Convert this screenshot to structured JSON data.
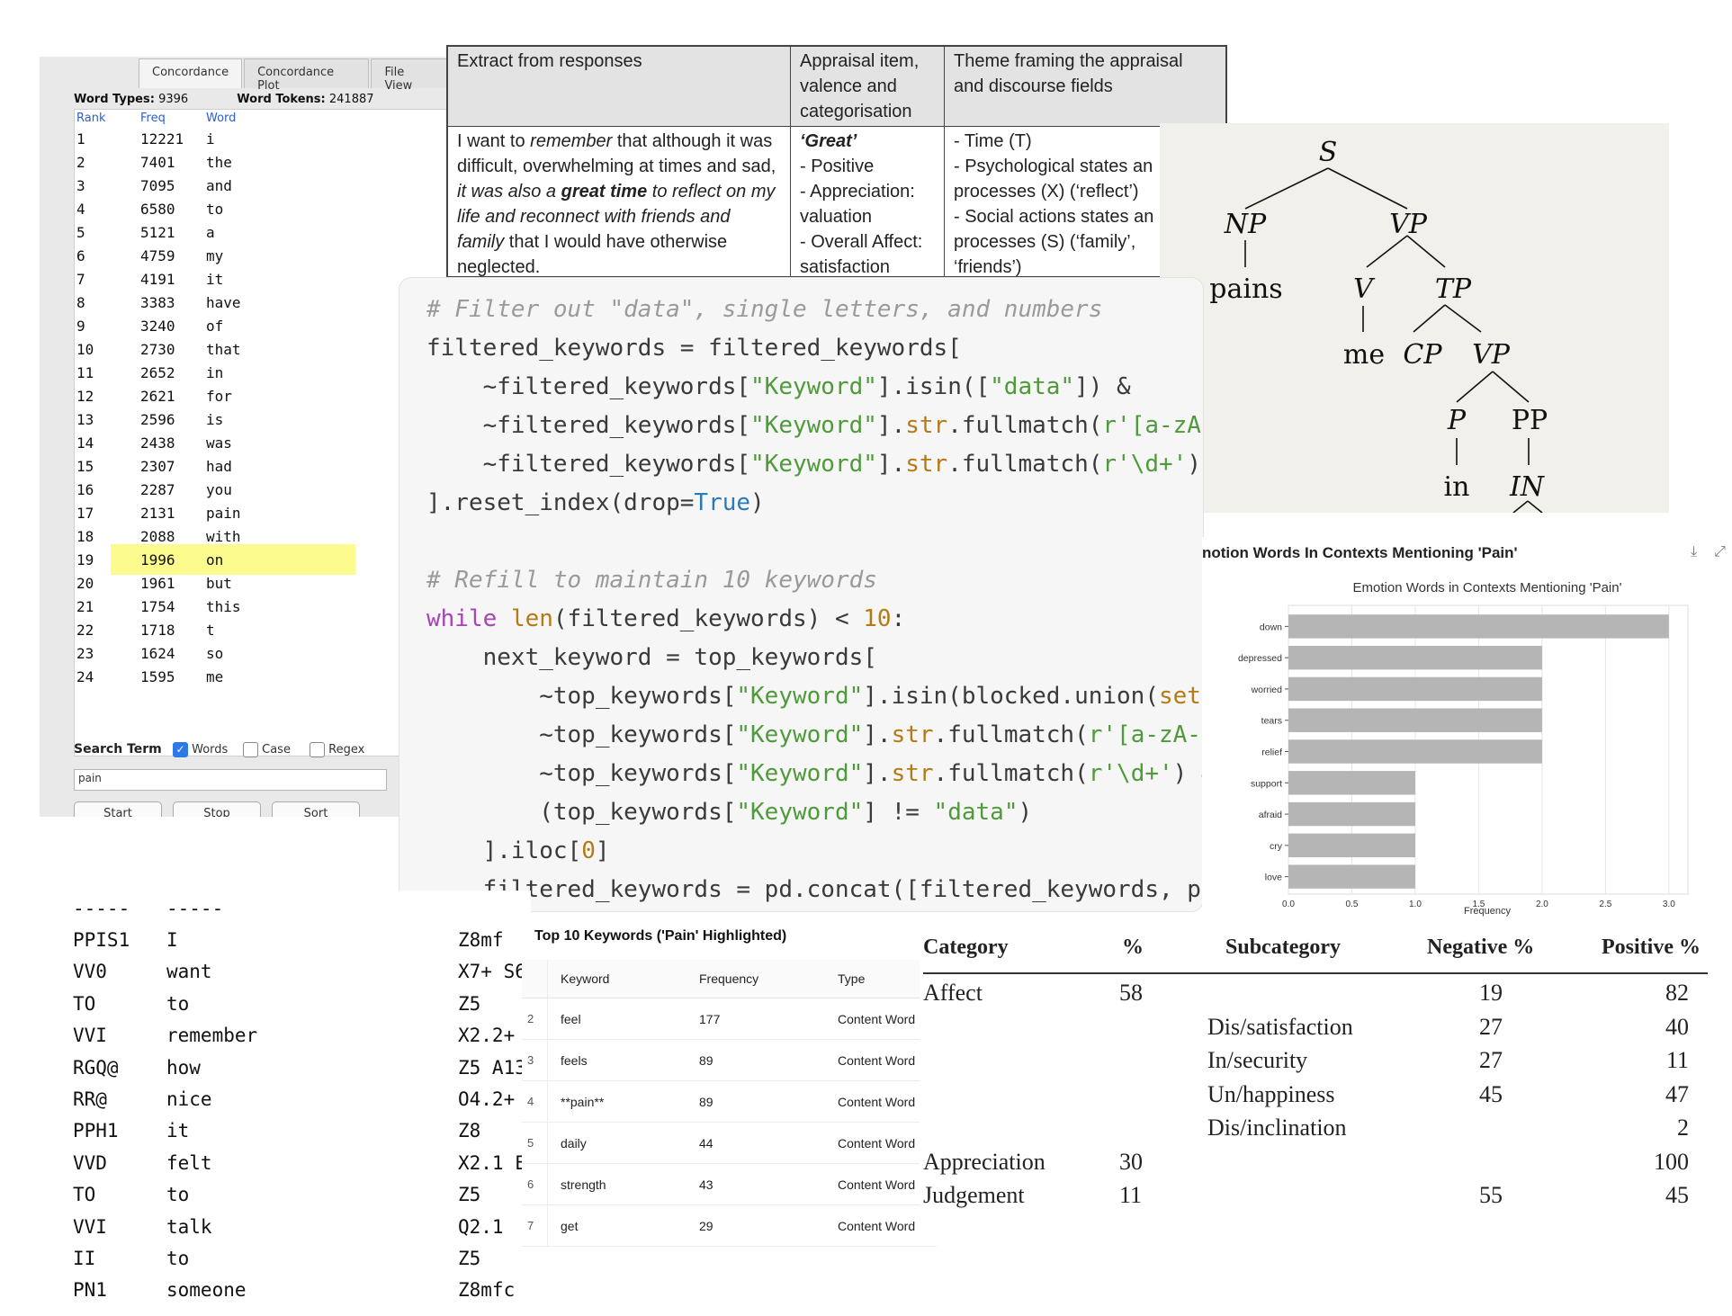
{
  "concordance": {
    "tabs": [
      "Concordance",
      "Concordance Plot",
      "File View"
    ],
    "word_types_label": "Word Types:",
    "word_types_value": "9396",
    "word_tokens_label": "Word Tokens:",
    "word_tokens_value": "241887",
    "columns": [
      "Rank",
      "Freq",
      "Word"
    ],
    "rows": [
      {
        "rank": "1",
        "freq": "12221",
        "word": "i"
      },
      {
        "rank": "2",
        "freq": "7401",
        "word": "the"
      },
      {
        "rank": "3",
        "freq": "7095",
        "word": "and"
      },
      {
        "rank": "4",
        "freq": "6580",
        "word": "to"
      },
      {
        "rank": "5",
        "freq": "5121",
        "word": "a"
      },
      {
        "rank": "6",
        "freq": "4759",
        "word": "my"
      },
      {
        "rank": "7",
        "freq": "4191",
        "word": "it"
      },
      {
        "rank": "8",
        "freq": "3383",
        "word": "have"
      },
      {
        "rank": "9",
        "freq": "3240",
        "word": "of"
      },
      {
        "rank": "10",
        "freq": "2730",
        "word": "that"
      },
      {
        "rank": "11",
        "freq": "2652",
        "word": "in"
      },
      {
        "rank": "12",
        "freq": "2621",
        "word": "for"
      },
      {
        "rank": "13",
        "freq": "2596",
        "word": "is"
      },
      {
        "rank": "14",
        "freq": "2438",
        "word": "was"
      },
      {
        "rank": "15",
        "freq": "2307",
        "word": "had"
      },
      {
        "rank": "16",
        "freq": "2287",
        "word": "you"
      },
      {
        "rank": "17",
        "freq": "2131",
        "word": "pain"
      },
      {
        "rank": "18",
        "freq": "2088",
        "word": "with"
      },
      {
        "rank": "19",
        "freq": "1996",
        "word": "on"
      },
      {
        "rank": "20",
        "freq": "1961",
        "word": "but"
      },
      {
        "rank": "21",
        "freq": "1754",
        "word": "this"
      },
      {
        "rank": "22",
        "freq": "1718",
        "word": "t"
      },
      {
        "rank": "23",
        "freq": "1624",
        "word": "so"
      },
      {
        "rank": "24",
        "freq": "1595",
        "word": "me"
      }
    ],
    "search_term_label": "Search Term",
    "options": [
      {
        "label": "Words",
        "checked": true
      },
      {
        "label": "Case",
        "checked": false
      },
      {
        "label": "Regex",
        "checked": false
      }
    ],
    "search_value": "pain",
    "buttons": [
      "Start",
      "Stop",
      "Sort"
    ]
  },
  "appraisal_table": {
    "headers": [
      "Extract from responses",
      "Appraisal item, valence and categorisation",
      "Theme framing the appraisal and discourse fields"
    ],
    "extract": {
      "p1": "I want to ",
      "p2": "remember",
      "p3": " that although it was difficult, overwhelming at times and sad, ",
      "p4": "it was also a ",
      "p5": "great time",
      "p6": " to reflect on my life and reconnect with friends and family",
      "p7": " that I would have otherwise neglected."
    },
    "appraisal_item": {
      "title": "‘Great’",
      "lines": [
        "- Positive",
        "- Appreciation: valuation",
        "- Overall Affect: satisfaction"
      ]
    },
    "theme": [
      "- Time (T)",
      "- Psychological states an",
      "processes (X) (‘reflect’)",
      "- Social actions states an",
      "processes (S) (‘family’,",
      "‘friends’)"
    ]
  },
  "syntax_tree": {
    "nodes": [
      "S",
      "NP",
      "VP",
      "pains",
      "V",
      "TP",
      "me",
      "CP",
      "VP",
      "P",
      "PP",
      "in",
      "IN"
    ]
  },
  "code": {
    "comment1": "# Filter out \"data\", single letters, and numbers",
    "comment2": "# Refill to maintain 10 keywords"
  },
  "chart_panel": {
    "outer_title": "notion Words In Contexts Mentioning 'Pain'"
  },
  "chart_data": {
    "type": "bar",
    "orientation": "horizontal",
    "title": "Emotion Words in Contexts Mentioning 'Pain'",
    "xlabel": "Frequency",
    "ylabel": "",
    "categories": [
      "down",
      "depressed",
      "worried",
      "tears",
      "relief",
      "support",
      "afraid",
      "cry",
      "love"
    ],
    "values": [
      3,
      2,
      2,
      2,
      2,
      1,
      1,
      1,
      1
    ],
    "xlim": [
      0,
      3.15
    ],
    "xticks": [
      "0.0",
      "0.5",
      "1.0",
      "1.5",
      "2.0",
      "2.5",
      "3.0"
    ],
    "bar_color": "#b5b5b5",
    "grid": true
  },
  "tagged_text": {
    "separator": [
      "-----",
      "-----"
    ],
    "rows": [
      {
        "tag": "PPIS1",
        "word": "I",
        "sem": "Z8mf"
      },
      {
        "tag": "VV0",
        "word": "want",
        "sem": "X7+ S6"
      },
      {
        "tag": "TO",
        "word": "to",
        "sem": "Z5"
      },
      {
        "tag": "VVI",
        "word": "remember",
        "sem": "X2.2+"
      },
      {
        "tag": "RGQ@",
        "word": "how",
        "sem": "Z5 A13"
      },
      {
        "tag": "RR@",
        "word": "nice",
        "sem": "O4.2+"
      },
      {
        "tag": "PPH1",
        "word": "it",
        "sem": "Z8"
      },
      {
        "tag": "VVD",
        "word": "felt",
        "sem": "X2.1 E"
      },
      {
        "tag": "TO",
        "word": "to",
        "sem": "Z5"
      },
      {
        "tag": "VVI",
        "word": "talk",
        "sem": "Q2.1"
      },
      {
        "tag": "II",
        "word": "to",
        "sem": "Z5"
      },
      {
        "tag": "PN1",
        "word": "someone",
        "sem": "Z8mfc"
      }
    ]
  },
  "keywords_table": {
    "title": "Top 10 Keywords ('Pain' Highlighted)",
    "columns": [
      "Keyword",
      "Frequency",
      "Type"
    ],
    "rows": [
      {
        "idx": "2",
        "keyword": "feel",
        "freq": "177",
        "type": "Content Word"
      },
      {
        "idx": "3",
        "keyword": "feels",
        "freq": "89",
        "type": "Content Word"
      },
      {
        "idx": "4",
        "keyword": "**pain**",
        "freq": "89",
        "type": "Content Word"
      },
      {
        "idx": "5",
        "keyword": "daily",
        "freq": "44",
        "type": "Content Word"
      },
      {
        "idx": "6",
        "keyword": "strength",
        "freq": "43",
        "type": "Content Word"
      },
      {
        "idx": "7",
        "keyword": "get",
        "freq": "29",
        "type": "Content Word"
      }
    ]
  },
  "category_table": {
    "headers": [
      "Category",
      "%",
      "Subcategory",
      "Negative %",
      "Positive %"
    ],
    "rows": [
      {
        "category": "Affect",
        "pct": "58",
        "sub": "",
        "neg": "19",
        "pos": "82"
      },
      {
        "category": "",
        "pct": "",
        "sub": "Dis/satisfaction",
        "neg": "27",
        "pos": "40"
      },
      {
        "category": "",
        "pct": "",
        "sub": "In/security",
        "neg": "27",
        "pos": "11"
      },
      {
        "category": "",
        "pct": "",
        "sub": "Un/happiness",
        "neg": "45",
        "pos": "47"
      },
      {
        "category": "",
        "pct": "",
        "sub": "Dis/inclination",
        "neg": "",
        "pos": "2"
      },
      {
        "category": "Appreciation",
        "pct": "30",
        "sub": "",
        "neg": "",
        "pos": "100"
      },
      {
        "category": "Judgement",
        "pct": "11",
        "sub": "",
        "neg": "55",
        "pos": "45"
      }
    ]
  }
}
